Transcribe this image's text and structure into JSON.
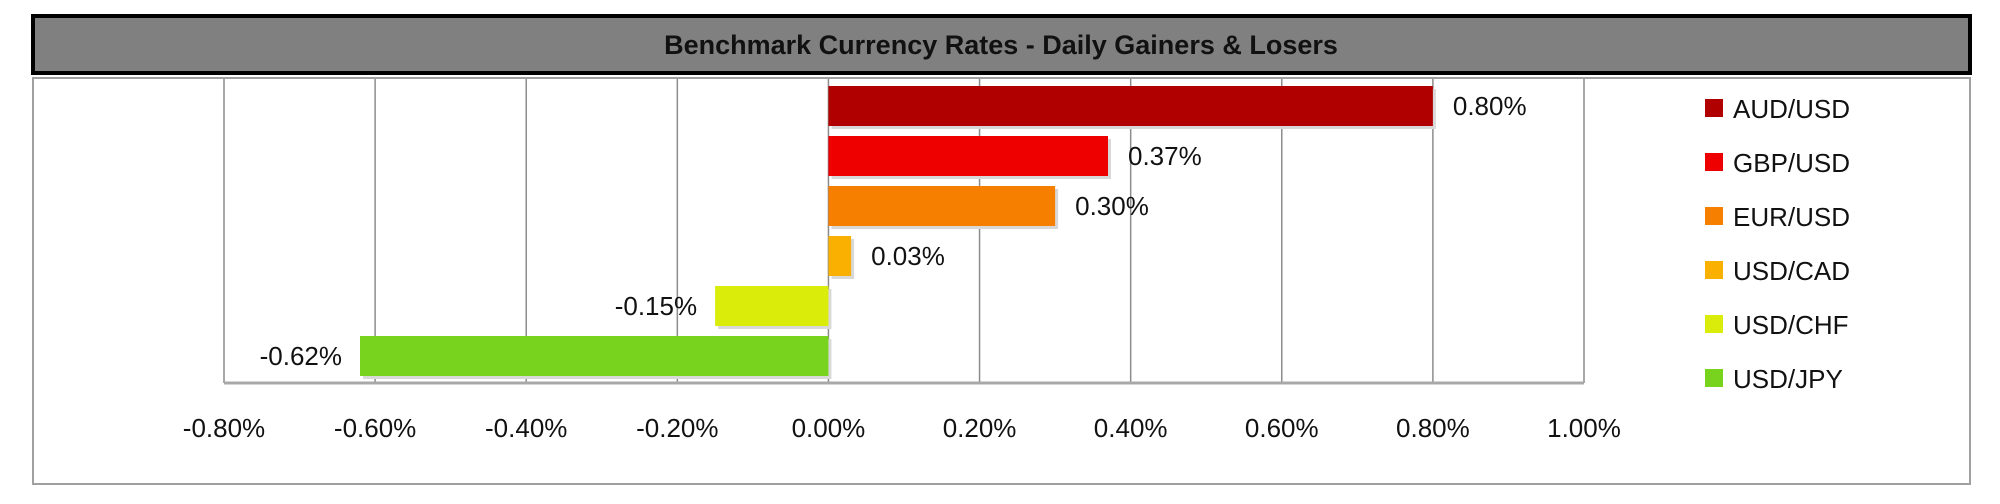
{
  "chart_data": {
    "type": "bar",
    "orientation": "horizontal",
    "title": "Benchmark Currency Rates - Daily Gainers & Losers",
    "categories": [
      "AUD/USD",
      "GBP/USD",
      "EUR/USD",
      "USD/CAD",
      "USD/CHF",
      "USD/JPY"
    ],
    "values": [
      0.8,
      0.37,
      0.3,
      0.03,
      -0.15,
      -0.62
    ],
    "data_labels": [
      "0.80%",
      "0.37%",
      "0.30%",
      "0.03%",
      "-0.15%",
      "-0.62%"
    ],
    "colors": [
      "#b00000",
      "#ee0000",
      "#f77f00",
      "#f9b000",
      "#d9ec0a",
      "#78d31e"
    ],
    "xlim": [
      -0.8,
      1.0
    ],
    "x_ticks": [
      -0.8,
      -0.6,
      -0.4,
      -0.2,
      0.0,
      0.2,
      0.4,
      0.6,
      0.8,
      1.0
    ],
    "x_tick_labels": [
      "-0.80%",
      "-0.60%",
      "-0.40%",
      "-0.20%",
      "0.00%",
      "0.20%",
      "0.40%",
      "0.60%",
      "0.80%",
      "1.00%"
    ],
    "xlabel": "",
    "ylabel": "",
    "grid": "vertical",
    "legend": "right",
    "title_bar_color": "#808080"
  }
}
